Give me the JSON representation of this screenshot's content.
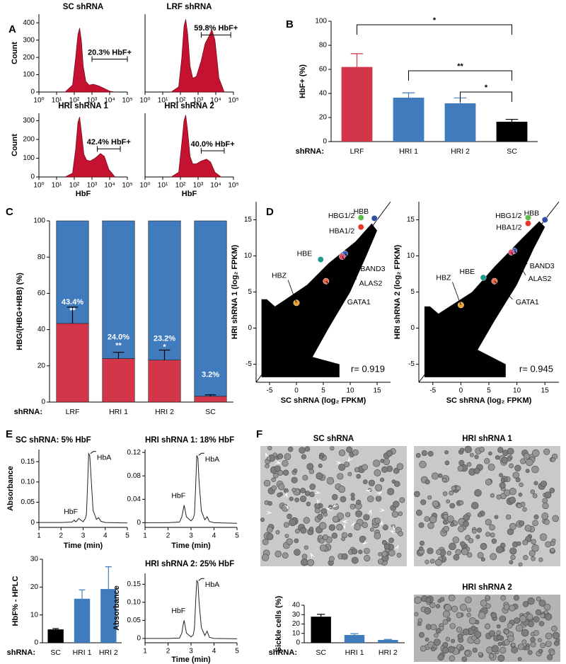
{
  "panel_letters": [
    "A",
    "B",
    "C",
    "D",
    "E",
    "F"
  ],
  "images": [
    {
      "title": "SC shRNA"
    },
    {
      "title": "HRI shRNA 1"
    },
    {
      "title": "HRI shRNA 2"
    }
  ],
  "chart_data": [
    {
      "type": "area",
      "title": "SC shRNA",
      "ylabel": "Count",
      "color": "#c41230",
      "xscale": "log",
      "xlim": [
        1,
        100000
      ],
      "xticks": [
        {
          "value": 1,
          "label": "10⁰"
        },
        {
          "value": 10,
          "label": "10¹"
        },
        {
          "value": 100,
          "label": "10²"
        },
        {
          "value": 1000,
          "label": "10³"
        },
        {
          "value": 10000,
          "label": "10⁴"
        },
        {
          "value": 100000,
          "label": "10⁵"
        }
      ],
      "ylim": [
        0,
        450
      ],
      "yticks": [
        0,
        100,
        200,
        300,
        400
      ],
      "x": [
        30,
        80,
        120,
        160,
        200,
        250,
        320,
        450,
        700,
        1200,
        2500,
        5000,
        10000,
        20000
      ],
      "values": [
        0,
        40,
        200,
        330,
        370,
        300,
        150,
        60,
        40,
        45,
        35,
        20,
        5,
        0
      ],
      "gate": {
        "x": [
          1000,
          100000
        ],
        "y": 190,
        "label": "20.3% HbF+"
      }
    },
    {
      "type": "area",
      "title": "LRF shRNA",
      "color": "#c41230",
      "xscale": "log",
      "xlim": [
        1,
        100000
      ],
      "xticks": [
        {
          "value": 1,
          "label": "10⁰"
        },
        {
          "value": 10,
          "label": "10¹"
        },
        {
          "value": 100,
          "label": "10²"
        },
        {
          "value": 1000,
          "label": "10³"
        },
        {
          "value": 10000,
          "label": "10⁴"
        },
        {
          "value": 100000,
          "label": "10⁵"
        }
      ],
      "ylim": [
        0,
        450
      ],
      "x": [
        30,
        80,
        120,
        160,
        200,
        260,
        350,
        500,
        800,
        1500,
        2500,
        4000,
        6000,
        9000,
        15000,
        30000
      ],
      "values": [
        0,
        30,
        200,
        380,
        420,
        330,
        150,
        80,
        90,
        180,
        280,
        320,
        360,
        300,
        80,
        0
      ],
      "gate": {
        "x": [
          1500,
          70000
        ],
        "y": 330,
        "label": "59.8% HbF+"
      }
    },
    {
      "type": "area",
      "title": "HRI shRNA 1",
      "ylabel": "Count",
      "xlabel": "HbF",
      "color": "#c41230",
      "xscale": "log",
      "xlim": [
        1,
        100000
      ],
      "xticks": [
        {
          "value": 1,
          "label": "10⁰"
        },
        {
          "value": 10,
          "label": "10¹"
        },
        {
          "value": 100,
          "label": "10²"
        },
        {
          "value": 1000,
          "label": "10³"
        },
        {
          "value": 10000,
          "label": "10⁴"
        },
        {
          "value": 100000,
          "label": "10⁵"
        }
      ],
      "ylim": [
        0,
        340
      ],
      "yticks": [
        0,
        100,
        200,
        300
      ],
      "x": [
        30,
        80,
        120,
        160,
        200,
        260,
        350,
        500,
        800,
        1500,
        3000,
        5000,
        9000,
        20000
      ],
      "values": [
        0,
        20,
        150,
        290,
        320,
        230,
        120,
        90,
        85,
        100,
        125,
        110,
        40,
        0
      ],
      "gate": {
        "x": [
          2000,
          40000
        ],
        "y": 150,
        "label": "42.4% HbF+"
      }
    },
    {
      "type": "area",
      "title": "HRI shRNA 2",
      "xlabel": "HbF",
      "color": "#c41230",
      "xscale": "log",
      "xlim": [
        1,
        100000
      ],
      "xticks": [
        {
          "value": 1,
          "label": "10⁰"
        },
        {
          "value": 10,
          "label": "10¹"
        },
        {
          "value": 100,
          "label": "10²"
        },
        {
          "value": 1000,
          "label": "10³"
        },
        {
          "value": 10000,
          "label": "10⁴"
        },
        {
          "value": 100000,
          "label": "10⁵"
        }
      ],
      "ylim": [
        0,
        340
      ],
      "x": [
        30,
        80,
        120,
        160,
        200,
        260,
        350,
        500,
        800,
        1500,
        3000,
        5000,
        9000,
        20000
      ],
      "values": [
        0,
        25,
        180,
        300,
        330,
        240,
        110,
        70,
        70,
        85,
        95,
        80,
        25,
        0
      ],
      "gate": {
        "x": [
          1500,
          30000
        ],
        "y": 140,
        "label": "40.0% HbF+"
      }
    },
    {
      "type": "bar",
      "ylabel": "HbF+ (%)",
      "group_label": "shRNA:",
      "categories": [
        "LRF",
        "HRI 1",
        "HRI 2",
        "SC"
      ],
      "values": [
        62,
        36.5,
        31.8,
        16.5
      ],
      "errors": [
        11,
        4,
        4.5,
        2
      ],
      "colors": [
        "#d43649",
        "#3f7bbd",
        "#3f7bbd",
        "#000000"
      ],
      "ylim": [
        0,
        100
      ],
      "yticks": [
        0,
        20,
        40,
        60,
        80,
        100
      ],
      "significance": [
        {
          "between": [
            0,
            3
          ],
          "label": "*"
        },
        {
          "between": [
            1,
            3
          ],
          "label": "**"
        },
        {
          "between": [
            2,
            3
          ],
          "label": "*"
        }
      ]
    },
    {
      "type": "stacked_bar",
      "ylabel": "HBG/(HBG+HBB) (%)",
      "group_label": "shRNA:",
      "categories": [
        "LRF",
        "HRI 1",
        "HRI 2",
        "SC"
      ],
      "ylim": [
        0,
        100
      ],
      "yticks": [
        0,
        20,
        40,
        60,
        80,
        100
      ],
      "series": [
        {
          "color": "#d43649",
          "values": [
            43.4,
            24.0,
            23.2,
            3.2
          ],
          "errors": [
            9,
            3.5,
            5.5,
            0.8
          ],
          "value_labels": [
            "43.4%",
            "24.0%",
            "23.2%",
            "3.2%"
          ],
          "stars": [
            "**",
            "**",
            "*",
            null
          ]
        },
        {
          "color": "#3f7bbd",
          "values": [
            56.6,
            76.0,
            76.8,
            96.8
          ]
        }
      ]
    },
    {
      "type": "scatter",
      "ylabel": "HRI shRNA 1 (log₂ FPKM)",
      "xlabel": "SC shRNA (log₂ FPKM)",
      "annotation": "r= 0.919",
      "diagonal": true,
      "xlim": [
        -7.5,
        17.5
      ],
      "xticks": [
        -5,
        0,
        5,
        10,
        15
      ],
      "ylim": [
        -7.5,
        17.5
      ],
      "yticks": [
        -5,
        0,
        5,
        10,
        15
      ],
      "cloud": {
        "x": [
          -6.5,
          8,
          8,
          3,
          6,
          10,
          13,
          15,
          14,
          11,
          6,
          2,
          -2,
          -4,
          -5.5,
          -6.5
        ],
        "y": [
          -6.8,
          -6.8,
          -5,
          -4,
          0,
          5,
          10,
          13.5,
          14.5,
          12,
          9,
          6,
          4,
          3,
          4,
          4
        ]
      },
      "points": [
        {
          "label": "HBB",
          "x": 14.5,
          "y": 15.2,
          "color": "#2f4fa3"
        },
        {
          "label": "HBG1/2",
          "x": 12,
          "y": 15.3,
          "color": "#5cbf4a"
        },
        {
          "label": "HBA1/2",
          "x": 12,
          "y": 14,
          "color": "#e8382f"
        },
        {
          "label": "HBE",
          "x": 4.5,
          "y": 9.5,
          "color": "#1e9a8e"
        },
        {
          "label": "BAND3",
          "x": 9,
          "y": 10.3,
          "color": "#3a5fb8"
        },
        {
          "label": "ALAS2",
          "x": 8.5,
          "y": 9.9,
          "color": "#e0506a"
        },
        {
          "label": "GATA1",
          "x": 5.5,
          "y": 6.5,
          "color": "#e9694b"
        },
        {
          "label": "HBZ",
          "x": 0,
          "y": 3.5,
          "color": "#f0a030"
        }
      ]
    },
    {
      "type": "scatter",
      "ylabel": "HRI shRNA 2 (log₂ FPKM)",
      "xlabel": "SC shRNA (log₂ FPKM)",
      "annotation": "r= 0.945",
      "diagonal": true,
      "xlim": [
        -7.5,
        17.5
      ],
      "xticks": [
        -5,
        0,
        5,
        10,
        15
      ],
      "ylim": [
        -7.5,
        17.5
      ],
      "yticks": [
        -5,
        0,
        5,
        10,
        15
      ],
      "cloud": {
        "x": [
          -6.5,
          8,
          8,
          3,
          6,
          10,
          13,
          15,
          14,
          11,
          6,
          2,
          -2,
          -4,
          -5.5,
          -6.5
        ],
        "y": [
          -6.8,
          -6.8,
          -5,
          -3,
          1,
          6,
          11,
          14,
          14.8,
          12.5,
          8.5,
          5,
          3,
          2,
          3,
          3
        ]
      },
      "points": [
        {
          "label": "HBB",
          "x": 15,
          "y": 15,
          "color": "#2f4fa3"
        },
        {
          "label": "HBG1/2",
          "x": 12,
          "y": 15.3,
          "color": "#5cbf4a"
        },
        {
          "label": "HBA1/2",
          "x": 12,
          "y": 14.5,
          "color": "#e8382f"
        },
        {
          "label": "HBE",
          "x": 4,
          "y": 7,
          "color": "#1e9a8e"
        },
        {
          "label": "BAND3",
          "x": 9.5,
          "y": 10.7,
          "color": "#3a5fb8"
        },
        {
          "label": "ALAS2",
          "x": 9,
          "y": 10.5,
          "color": "#e0506a"
        },
        {
          "label": "GATA1",
          "x": 6,
          "y": 6.5,
          "color": "#e9694b"
        },
        {
          "label": "HBZ",
          "x": 0,
          "y": 3.2,
          "color": "#f0a030"
        }
      ]
    },
    {
      "type": "line",
      "title": "SC shRNA:  5% HbF",
      "ylabel": "Absorbance",
      "xlabel": "Time (min)",
      "color": "#222222",
      "xlim": [
        1,
        5
      ],
      "xticks": [
        1,
        2,
        3,
        4,
        5
      ],
      "ylim": [
        -0.012,
        0.18
      ],
      "yticks": [
        0,
        0.05,
        {
          "value": 0.1,
          "label": "0.10"
        },
        0.15
      ],
      "x": [
        1,
        2,
        2.5,
        2.6,
        2.65,
        2.7,
        2.8,
        3.0,
        3.1,
        3.15,
        3.2,
        3.25,
        3.3,
        3.35,
        3.45,
        3.6,
        3.7,
        3.8,
        4,
        5
      ],
      "values": [
        0,
        0,
        0.001,
        0.006,
        0.002,
        0.003,
        0.01,
        0.002,
        0.01,
        0.02,
        0.09,
        0.17,
        0.165,
        0.12,
        0.03,
        0.008,
        0.012,
        0.003,
        0,
        -0.001
      ],
      "peaks": [
        {
          "label": "HbF",
          "x": 2.7
        },
        {
          "label": "HbA",
          "x": 3.3
        }
      ]
    },
    {
      "type": "line",
      "title": "HRI shRNA 1: 18% HbF",
      "xlabel": "Time (min)",
      "color": "#222222",
      "xlim": [
        1,
        5
      ],
      "xticks": [
        1,
        2,
        3,
        4,
        5
      ],
      "ylim": [
        -0.008,
        0.125
      ],
      "yticks": [
        0,
        0.04,
        0.08,
        0.12
      ],
      "x": [
        1,
        2,
        2.5,
        2.6,
        2.65,
        2.7,
        2.8,
        3.0,
        3.1,
        3.15,
        3.2,
        3.25,
        3.3,
        3.35,
        3.45,
        3.6,
        3.7,
        3.8,
        4,
        5
      ],
      "values": [
        0,
        0,
        0.001,
        0.01,
        0.02,
        0.03,
        0.01,
        0.003,
        0.008,
        0.015,
        0.06,
        0.115,
        0.11,
        0.07,
        0.02,
        0.005,
        0.01,
        0.002,
        0,
        -0.001
      ],
      "peaks": [
        {
          "label": "HbF",
          "x": 2.7
        },
        {
          "label": "HbA",
          "x": 3.3
        }
      ]
    },
    {
      "type": "bar",
      "ylabel": "HbF% - HPLC",
      "group_label": "shRNA:",
      "categories": [
        "SC",
        "HRI 1",
        "HRI 2"
      ],
      "values": [
        4.8,
        15.8,
        19.3
      ],
      "errors": [
        0.3,
        3.2,
        8
      ],
      "colors": [
        "#000000",
        "#3f7bbd",
        "#3f7bbd"
      ],
      "ylim": [
        0,
        30
      ],
      "yticks": [
        0,
        10,
        20,
        30
      ]
    },
    {
      "type": "line",
      "title": "HRI shRNA 2: 25% HbF",
      "ylabel": "Absorbance",
      "xlabel": "Time (min)",
      "color": "#222222",
      "xlim": [
        1,
        5
      ],
      "xticks": [
        1,
        2,
        3,
        4,
        5
      ],
      "ylim": [
        -0.012,
        0.18
      ],
      "yticks": [
        0,
        0.05,
        {
          "value": 0.1,
          "label": "0.10"
        },
        0.15
      ],
      "x": [
        1,
        2,
        2.5,
        2.6,
        2.65,
        2.7,
        2.8,
        3.0,
        3.1,
        3.15,
        3.2,
        3.25,
        3.3,
        3.35,
        3.45,
        3.6,
        3.7,
        3.8,
        4,
        5
      ],
      "values": [
        0,
        0,
        0.001,
        0.015,
        0.035,
        0.05,
        0.015,
        0.004,
        0.01,
        0.03,
        0.1,
        0.16,
        0.155,
        0.1,
        0.03,
        0.008,
        0.02,
        0.003,
        0,
        -0.001
      ],
      "peaks": [
        {
          "label": "HbF",
          "x": 2.7
        },
        {
          "label": "HbA",
          "x": 3.3
        }
      ]
    },
    {
      "type": "bar",
      "ylabel": "Sickle cells (%)",
      "group_label": "shRNA:",
      "categories": [
        "SC",
        "HRI 1",
        "HRI 2"
      ],
      "values": [
        27.8,
        8.3,
        3
      ],
      "errors": [
        2.5,
        1.4,
        0.6
      ],
      "colors": [
        "#000000",
        "#3f7bbd",
        "#3f7bbd"
      ],
      "ylim": [
        0,
        40
      ],
      "yticks": [
        0,
        10,
        20,
        30,
        40
      ]
    }
  ]
}
